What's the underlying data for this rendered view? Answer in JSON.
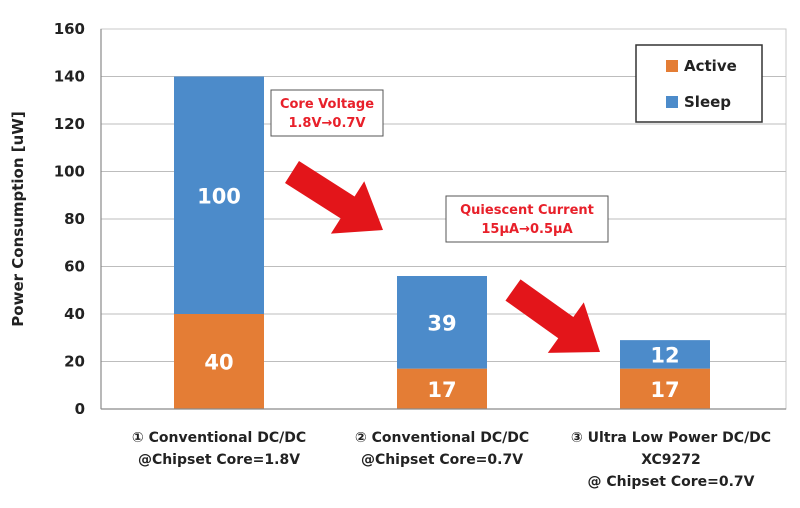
{
  "colors": {
    "active": "#E47D35",
    "sleep": "#4C8BCA",
    "annotation_text": "#E8202A",
    "arrow": "#E3151A"
  },
  "chart_data": {
    "type": "bar",
    "stacked": true,
    "categories": [
      [
        "① Conventional DC/DC",
        "@Chipset Core=1.8V"
      ],
      [
        "② Conventional DC/DC",
        "@Chipset Core=0.7V"
      ],
      [
        "③ Ultra Low Power DC/DC",
        "XC9272",
        "@ Chipset Core=0.7V"
      ]
    ],
    "series": [
      {
        "name": "Active",
        "values": [
          40,
          17,
          17
        ]
      },
      {
        "name": "Sleep",
        "values": [
          100,
          39,
          12
        ]
      }
    ],
    "data_labels": {
      "Active": [
        "40",
        "17",
        "17"
      ],
      "Sleep": [
        "100",
        "39",
        "12"
      ]
    },
    "ylabel": "Power Consumption [uW]",
    "xlabel": "",
    "ylim": [
      0,
      160
    ],
    "yticks": [
      "0",
      "20",
      "40",
      "60",
      "80",
      "100",
      "120",
      "140",
      "160"
    ],
    "grid": true,
    "legend": {
      "position": "top-right",
      "entries": [
        "Active",
        "Sleep"
      ]
    },
    "annotations": [
      {
        "lines": [
          "Core Voltage",
          "1.8V→0.7V"
        ],
        "between": "① and ②"
      },
      {
        "lines": [
          "Quiescent Current",
          "15μA→0.5μA"
        ],
        "between": "② and ③"
      }
    ]
  }
}
